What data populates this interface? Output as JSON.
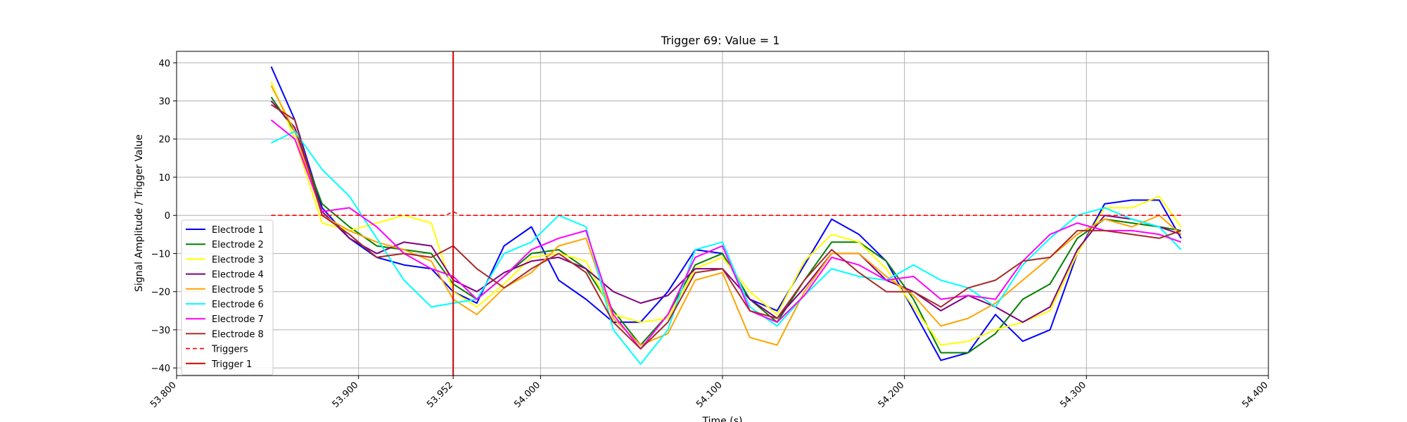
{
  "chart_data": {
    "type": "line",
    "title": "Trigger 69: Value = 1",
    "xlabel": "Time (s)",
    "ylabel": "Signal Amplitude / Trigger Value",
    "xlim": [
      53.8,
      54.4
    ],
    "ylim": [
      -42,
      43
    ],
    "grid": true,
    "legend_position": "lower-left",
    "x_ticks": [
      53.8,
      53.9,
      53.952,
      54.0,
      54.1,
      54.2,
      54.3,
      54.4
    ],
    "x_tick_labels": [
      "53.800",
      "53.900",
      "53.952",
      "54.000",
      "54.100",
      "54.200",
      "54.300",
      "54.400"
    ],
    "y_ticks": [
      40,
      30,
      20,
      10,
      0,
      -10,
      -20,
      -30,
      -40
    ],
    "y_tick_labels": [
      "40",
      "30",
      "20",
      "10",
      "0",
      "−10",
      "−20",
      "−30",
      "−40"
    ],
    "x": [
      53.852,
      53.865,
      53.88,
      53.895,
      53.91,
      53.925,
      53.94,
      53.952,
      53.965,
      53.98,
      53.995,
      54.01,
      54.025,
      54.04,
      54.055,
      54.07,
      54.085,
      54.1,
      54.115,
      54.13,
      54.145,
      54.16,
      54.175,
      54.19,
      54.205,
      54.22,
      54.235,
      54.25,
      54.265,
      54.28,
      54.295,
      54.31,
      54.325,
      54.34,
      54.352
    ],
    "series": [
      {
        "name": "Electrode 1",
        "color": "#0000ff",
        "values": [
          39,
          25,
          2,
          -6,
          -11,
          -13,
          -14,
          -20,
          -23,
          -8,
          -3,
          -17,
          -22,
          -28,
          -28,
          -20,
          -9,
          -10,
          -22,
          -25,
          -13,
          -1,
          -5,
          -12,
          -25,
          -38,
          -36,
          -26,
          -33,
          -30,
          -10,
          3,
          4,
          4,
          -6
        ]
      },
      {
        "name": "Electrode 2",
        "color": "#008000",
        "values": [
          31,
          22,
          3,
          -3,
          -8,
          -9,
          -10,
          -18,
          -22,
          -16,
          -10,
          -9,
          -14,
          -25,
          -34,
          -26,
          -13,
          -10,
          -22,
          -28,
          -17,
          -7,
          -7,
          -12,
          -22,
          -36,
          -36,
          -31,
          -22,
          -18,
          -6,
          -1,
          -2,
          -3,
          -4
        ]
      },
      {
        "name": "Electrode 3",
        "color": "#ffff00",
        "values": [
          35,
          20,
          -2,
          -4,
          -2,
          0,
          -2,
          -20,
          -24,
          -18,
          -11,
          -10,
          -12,
          -26,
          -28,
          -27,
          -14,
          -11,
          -20,
          -26,
          -12,
          -5,
          -7,
          -14,
          -24,
          -34,
          -33,
          -30,
          -28,
          -25,
          -10,
          2,
          2,
          5,
          -3
        ]
      },
      {
        "name": "Electrode 4",
        "color": "#800080",
        "values": [
          30,
          23,
          1,
          -6,
          -10,
          -7,
          -8,
          -17,
          -20,
          -15,
          -12,
          -11,
          -14,
          -20,
          -23,
          -21,
          -14,
          -14,
          -22,
          -27,
          -19,
          -10,
          -10,
          -17,
          -20,
          -25,
          -21,
          -24,
          -28,
          -24,
          -9,
          0,
          -1,
          -3,
          -5
        ]
      },
      {
        "name": "Electrode 5",
        "color": "#ffa500",
        "values": [
          34,
          22,
          0,
          -4,
          -7,
          -9,
          -12,
          -22,
          -26,
          -19,
          -15,
          -8,
          -6,
          -27,
          -34,
          -31,
          -17,
          -15,
          -32,
          -34,
          -20,
          -10,
          -10,
          -16,
          -21,
          -29,
          -27,
          -23,
          -17,
          -11,
          -5,
          -1,
          -3,
          0,
          -5
        ]
      },
      {
        "name": "Electrode 6",
        "color": "#00ffff",
        "values": [
          19,
          22,
          12,
          5,
          -6,
          -17,
          -24,
          -23,
          -22,
          -10,
          -7,
          0,
          -3,
          -30,
          -39,
          -30,
          -9,
          -7,
          -24,
          -29,
          -21,
          -14,
          -16,
          -17,
          -13,
          -17,
          -19,
          -24,
          -13,
          -6,
          0,
          2,
          -1,
          -3,
          -9
        ]
      },
      {
        "name": "Electrode 7",
        "color": "#ff00ff",
        "values": [
          25,
          20,
          1,
          2,
          -3,
          -10,
          -14,
          -16,
          -22,
          -16,
          -9,
          -6,
          -4,
          -26,
          -35,
          -26,
          -11,
          -8,
          -25,
          -28,
          -21,
          -11,
          -13,
          -17,
          -16,
          -22,
          -21,
          -22,
          -12,
          -5,
          -2,
          -4,
          -4,
          -5,
          -7
        ]
      },
      {
        "name": "Electrode 8",
        "color": "#a52a2a",
        "values": [
          29,
          25,
          0,
          -5,
          -11,
          -10,
          -11,
          -8,
          -14,
          -19,
          -14,
          -10,
          -15,
          -28,
          -35,
          -28,
          -15,
          -14,
          -25,
          -27,
          -17,
          -9,
          -15,
          -20,
          -20,
          -24,
          -19,
          -17,
          -12,
          -11,
          -4,
          -4,
          -5,
          -6,
          -4
        ]
      }
    ],
    "triggers": {
      "name": "Triggers",
      "color": "#ff0000",
      "x": [
        53.852,
        53.948,
        53.952,
        53.956,
        54.352
      ],
      "values": [
        0,
        0,
        1,
        0,
        0
      ]
    },
    "marker": {
      "name": "Trigger 1",
      "color": "#cc0000",
      "x": 53.952
    }
  }
}
